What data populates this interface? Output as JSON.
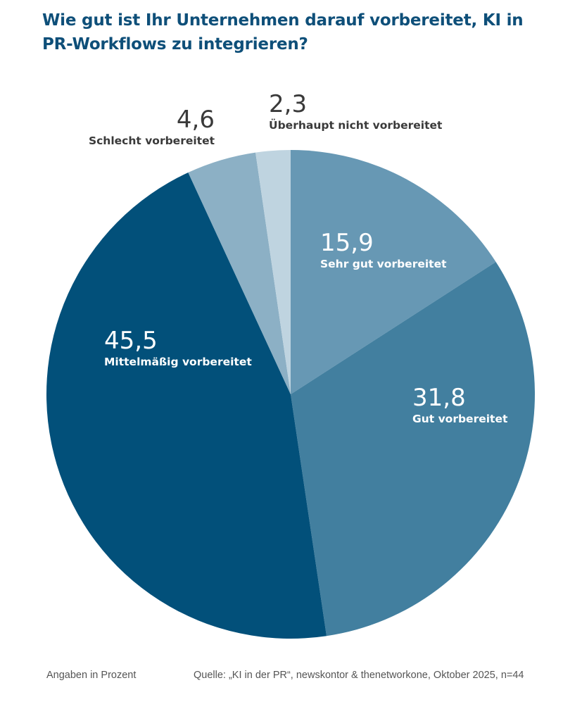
{
  "chart_data": {
    "type": "pie",
    "title": "Wie gut ist Ihr Unternehmen darauf vorbereitet, KI in PR-Workflows zu integrieren?",
    "unit_note": "Angaben in Prozent",
    "source": "Quelle: „KI in der PR“, newskontor & thenetworkone, Oktober 2025, n=44",
    "slices": [
      {
        "label": "Sehr gut vorbereitet",
        "value": 15.9,
        "display": "15,9",
        "color": "#6798b4"
      },
      {
        "label": "Gut vorbereitet",
        "value": 31.8,
        "display": "31,8",
        "color": "#427f9f"
      },
      {
        "label": "Mittelmäßig vorbereitet",
        "value": 45.5,
        "display": "45,5",
        "color": "#02507a"
      },
      {
        "label": "Schlecht vorbereitet",
        "value": 4.6,
        "display": "4,6",
        "color": "#8cb0c5"
      },
      {
        "label": "Überhaupt nicht vorbereitet",
        "value": 2.3,
        "display": "2,3",
        "color": "#bfd4e0"
      }
    ]
  }
}
